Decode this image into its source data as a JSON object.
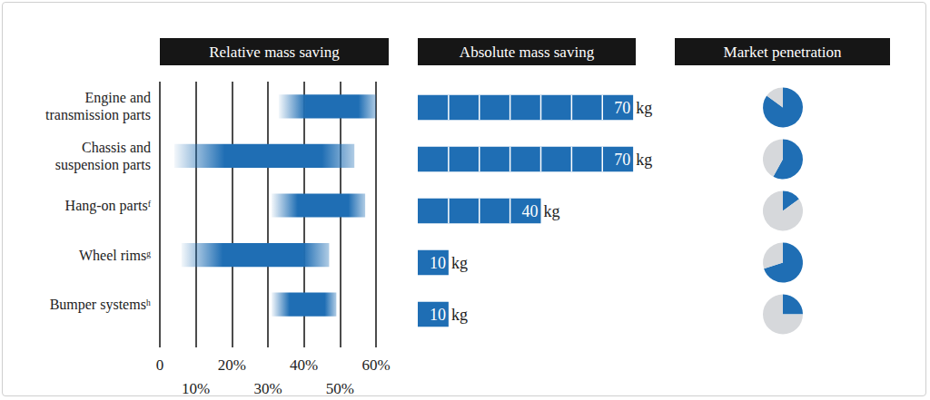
{
  "chart_data": [
    {
      "type": "range",
      "title": "Relative mass saving",
      "orientation": "horizontal",
      "categories": [
        "Engine and\ntransmission parts",
        "Chassis and\nsuspension parts",
        "Hang-on partsᶠ",
        "Wheel rimsᵍ",
        "Bumper systemsʰ"
      ],
      "values": [
        [
          33,
          60
        ],
        [
          4,
          54
        ],
        [
          31,
          57
        ],
        [
          6,
          47
        ],
        [
          31,
          49
        ]
      ],
      "color": "#1f6eb4",
      "xlim": [
        0,
        60
      ],
      "xticks": [
        0,
        {
          "value": 10,
          "label": "10%"
        },
        {
          "value": 20,
          "label": "20%"
        },
        {
          "value": 30,
          "label": "30%"
        },
        {
          "value": 40,
          "label": "40%"
        },
        {
          "value": 50,
          "label": "50%"
        },
        {
          "value": 60,
          "label": "60%"
        }
      ],
      "grid": true
    },
    {
      "type": "bar",
      "title": "Absolute mass saving",
      "orientation": "horizontal",
      "values": [
        70,
        70,
        40,
        10,
        10
      ],
      "unit": "kg",
      "color": "#1f6eb4",
      "xlim": [
        0,
        80
      ],
      "xticks": [
        0,
        10,
        20,
        30,
        40,
        50,
        60,
        70,
        80
      ],
      "tick_labels": false,
      "data_labels": true
    },
    {
      "type": "pie",
      "title": "Market penetration",
      "values": [
        85,
        58,
        15,
        70,
        25
      ],
      "ylim": [
        0,
        100
      ],
      "color": "#1f6eb4"
    }
  ]
}
